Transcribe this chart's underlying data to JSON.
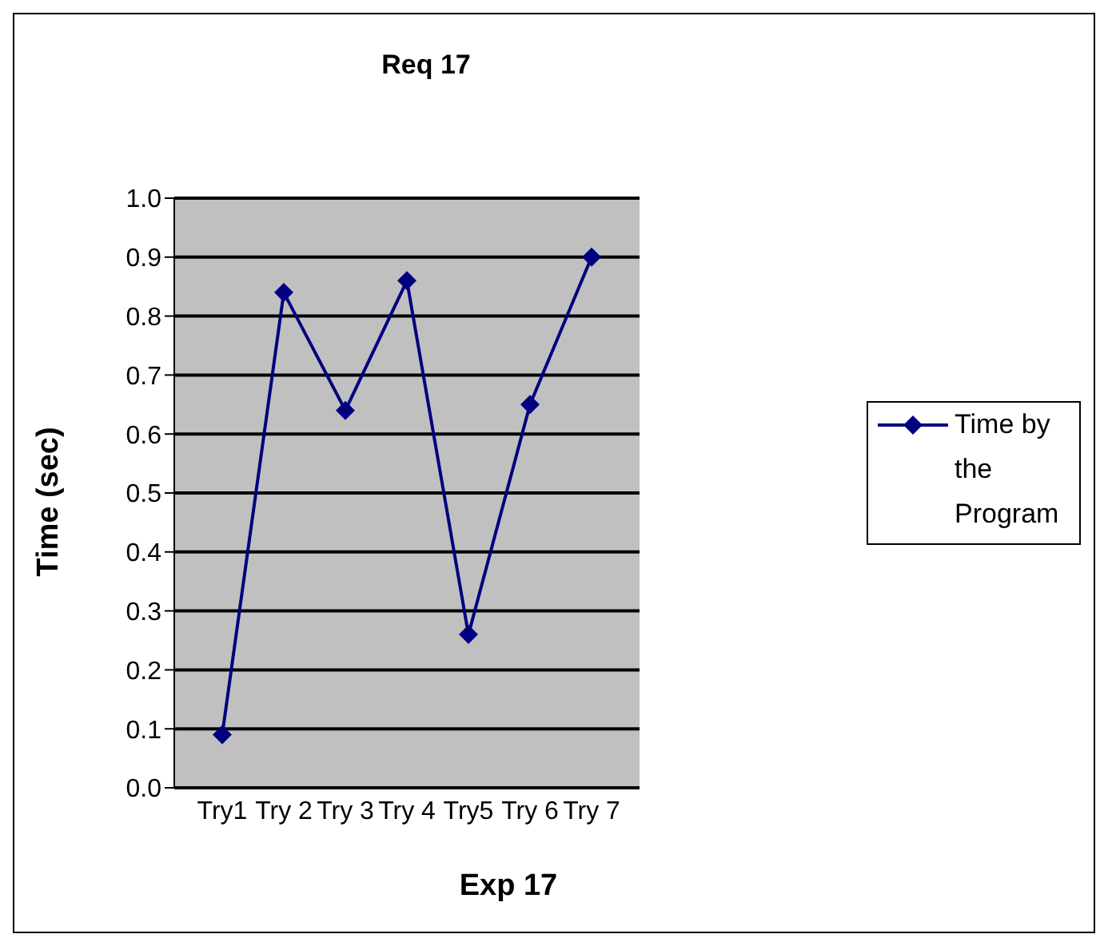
{
  "chart_data": {
    "type": "line",
    "title": "Req 17",
    "xlabel": "Exp 17",
    "ylabel": "Time (sec)",
    "categories": [
      "Try1",
      "Try 2",
      "Try 3",
      "Try 4",
      "Try5",
      "Try 6",
      "Try 7"
    ],
    "series": [
      {
        "name": "Time by the Program",
        "color": "#000080",
        "values": [
          0.09,
          0.84,
          0.64,
          0.86,
          0.26,
          0.65,
          0.9
        ]
      }
    ],
    "ylim": [
      0,
      1
    ],
    "yticks": [
      {
        "value": 0,
        "label": "0.0"
      },
      0.1,
      0.2,
      0.3,
      0.4,
      0.5,
      0.6,
      0.7,
      0.8,
      0.9,
      {
        "value": 1,
        "label": "1.0"
      }
    ],
    "grid": "y",
    "legend": "right",
    "marker": "diamond",
    "line_style": "solid"
  }
}
